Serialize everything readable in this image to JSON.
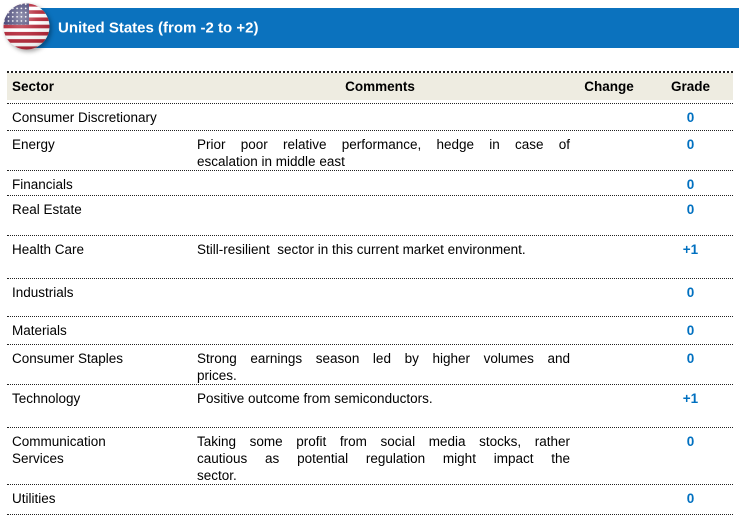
{
  "header": {
    "title": "United States (from -2 to +2)",
    "flag": "us-flag-icon"
  },
  "colors": {
    "bar_blue": "#0B72BE",
    "table_header_bg": "#EEECE1",
    "grade_blue": "#0070C0",
    "flag_red": "#B22234",
    "flag_canton_blue": "#3C3B6E"
  },
  "table": {
    "columns": {
      "sector": "Sector",
      "comments": "Comments",
      "change": "Change",
      "grade": "Grade"
    },
    "rows": [
      {
        "sector": "Consumer Discretionary",
        "comment_lines": [],
        "change": "",
        "grade": "0"
      },
      {
        "sector": "Energy",
        "comment_lines": [
          "Prior poor relative performance, hedge in case of",
          "escalation in middle east"
        ],
        "change": "",
        "grade": "0"
      },
      {
        "sector": "Financials",
        "comment_lines": [],
        "change": "",
        "grade": "0"
      },
      {
        "sector": "Real Estate",
        "comment_lines": [],
        "change": "",
        "grade": "0"
      },
      {
        "sector": "Health Care",
        "comment_lines": [
          "Still-resilient  sector in this current market environment."
        ],
        "change": "",
        "grade": "+1"
      },
      {
        "sector": "Industrials",
        "comment_lines": [],
        "change": "",
        "grade": "0"
      },
      {
        "sector": "Materials",
        "comment_lines": [],
        "change": "",
        "grade": "0"
      },
      {
        "sector": "Consumer Staples",
        "comment_lines": [
          "Strong earnings season led by higher volumes and",
          "prices."
        ],
        "change": "",
        "grade": "0"
      },
      {
        "sector": "Technology",
        "comment_lines": [
          "Positive outcome from semiconductors."
        ],
        "change": "",
        "grade": "+1"
      },
      {
        "sector": "Communication\nServices",
        "comment_lines": [
          "Taking some profit from social media stocks, rather",
          "cautious as potential regulation might impact the",
          "sector."
        ],
        "change": "",
        "grade": "0"
      },
      {
        "sector": "Utilities",
        "comment_lines": [],
        "change": "",
        "grade": "0"
      }
    ]
  }
}
